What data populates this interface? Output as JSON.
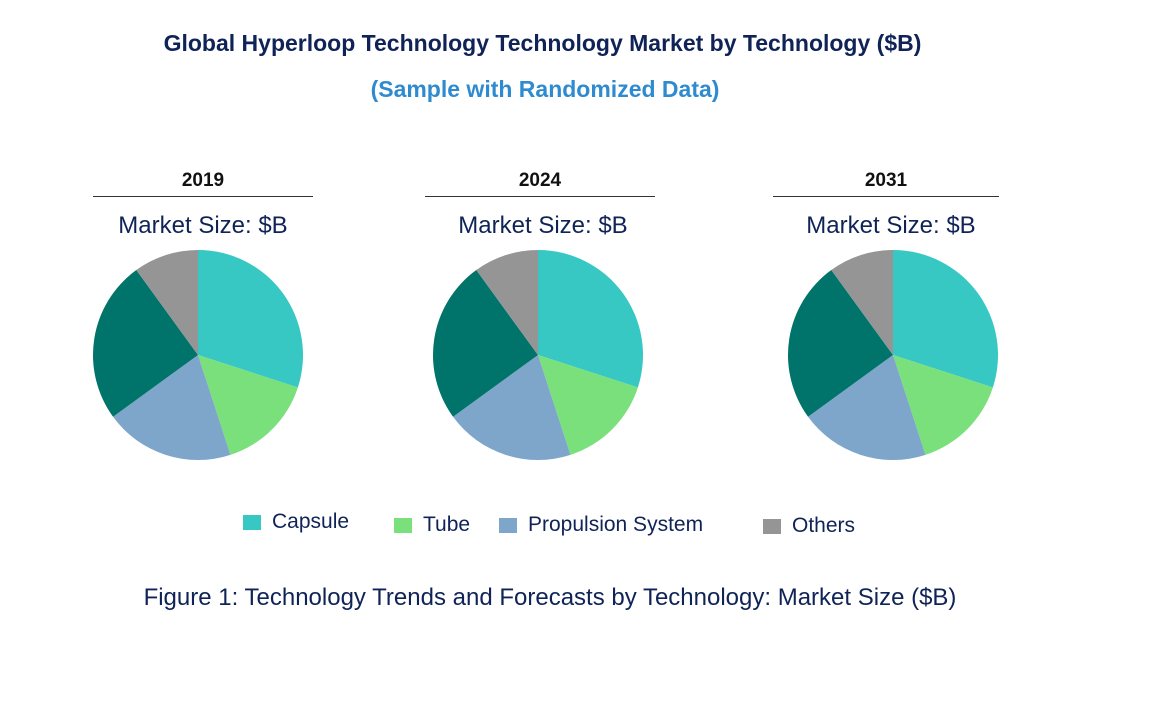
{
  "title": "Global Hyperloop Technology Technology Market by Technology ($B)",
  "subtitle": "(Sample with Randomized Data)",
  "caption": "Figure 1: Technology Trends and Forecasts by Technology: Market Size ($B)",
  "chart_data": {
    "type": "pie",
    "legend_position": "bottom",
    "categories": [
      "Capsule",
      "Tube",
      "Propulsion System",
      "",
      "Others"
    ],
    "colors": [
      "#37c8c4",
      "#7ae07c",
      "#7ea5ca",
      "#00736a",
      "#959595"
    ],
    "pies": [
      {
        "year": "2019",
        "label": "Market Size: $B",
        "values": [
          30,
          15,
          20,
          25,
          10
        ]
      },
      {
        "year": "2024",
        "label": "Market Size: $B",
        "values": [
          30,
          15,
          20,
          25,
          10
        ]
      },
      {
        "year": "2031",
        "label": "Market Size: $B",
        "values": [
          30,
          15,
          20,
          25,
          10
        ]
      }
    ],
    "legend": [
      {
        "label": "Capsule",
        "color": "#37c8c4"
      },
      {
        "label": "Tube",
        "color": "#7ae07c"
      },
      {
        "label": "Propulsion System",
        "color": "#7ea5ca"
      },
      {
        "label": "Others",
        "color": "#959595"
      }
    ]
  }
}
